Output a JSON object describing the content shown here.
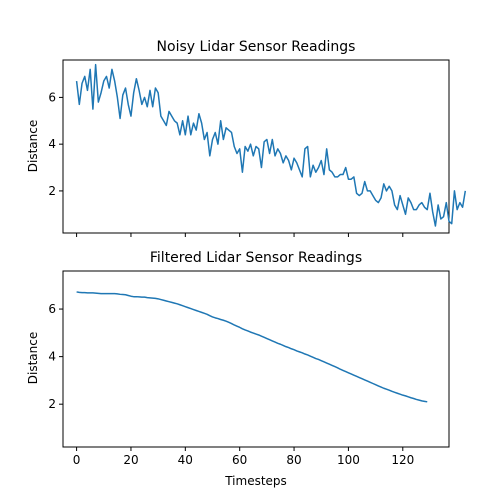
{
  "chart_data": [
    {
      "type": "line",
      "title": "Noisy Lidar Sensor Readings",
      "xlabel": "",
      "ylabel": "Distance",
      "xlim": [
        -5,
        137
      ],
      "ylim": [
        0.2,
        7.6
      ],
      "xticks": [
        0,
        20,
        40,
        60,
        80,
        100,
        120
      ],
      "yticks": [
        2,
        4,
        6
      ],
      "x_tick_labels_shown": false,
      "color": "#1f77b4",
      "grid": false,
      "series": [
        {
          "values": [
            6.7,
            5.7,
            6.6,
            6.9,
            6.3,
            7.2,
            5.5,
            7.4,
            5.8,
            6.2,
            6.7,
            6.9,
            6.4,
            7.2,
            6.7,
            6.0,
            5.1,
            6.1,
            6.4,
            5.7,
            5.2,
            6.2,
            6.8,
            6.3,
            5.7,
            6.0,
            5.6,
            6.3,
            5.6,
            6.4,
            6.2,
            5.2,
            5.0,
            4.8,
            5.4,
            5.2,
            5.0,
            4.9,
            4.4,
            5.0,
            4.4,
            5.2,
            4.4,
            4.9,
            4.6,
            5.3,
            4.9,
            4.2,
            4.5,
            3.5,
            4.2,
            4.5,
            4.0,
            5.0,
            4.2,
            4.7,
            4.6,
            4.5,
            3.9,
            3.6,
            3.8,
            2.8,
            3.9,
            3.7,
            4.0,
            3.5,
            3.9,
            3.8,
            3.0,
            4.1,
            4.2,
            3.6,
            4.2,
            3.5,
            3.8,
            3.6,
            3.2,
            3.5,
            3.3,
            2.9,
            3.4,
            3.2,
            2.9,
            2.6,
            3.8,
            3.9,
            2.6,
            3.1,
            2.8,
            3.0,
            3.3,
            2.7,
            3.8,
            2.9,
            2.8,
            2.6,
            2.6,
            2.7,
            2.7,
            3.0,
            2.5,
            2.5,
            2.6,
            1.9,
            1.8,
            1.9,
            2.4,
            2.0,
            2.0,
            1.8,
            1.6,
            1.5,
            1.7,
            2.3,
            2.0,
            2.2,
            2.0,
            1.4,
            1.2,
            1.8,
            1.4,
            1.0,
            1.7,
            1.5,
            1.2,
            1.2,
            1.4,
            1.5,
            1.3,
            1.2,
            1.9,
            1.1,
            0.5,
            1.4,
            0.8,
            0.9,
            1.5,
            0.7,
            0.6,
            2.0,
            1.2,
            1.5,
            1.3,
            2.0
          ]
        }
      ]
    },
    {
      "type": "line",
      "title": "Filtered Lidar Sensor Readings",
      "xlabel": "Timesteps",
      "ylabel": "Distance",
      "xlim": [
        -5,
        137
      ],
      "ylim": [
        0.2,
        7.6
      ],
      "xticks": [
        0,
        20,
        40,
        60,
        80,
        100,
        120
      ],
      "yticks": [
        2,
        4,
        6
      ],
      "x_tick_labels_shown": true,
      "color": "#1f77b4",
      "grid": false,
      "series": [
        {
          "values": [
            6.72,
            6.7,
            6.69,
            6.69,
            6.68,
            6.68,
            6.68,
            6.67,
            6.66,
            6.65,
            6.65,
            6.65,
            6.65,
            6.65,
            6.65,
            6.64,
            6.62,
            6.61,
            6.6,
            6.57,
            6.54,
            6.52,
            6.52,
            6.51,
            6.5,
            6.5,
            6.48,
            6.47,
            6.46,
            6.45,
            6.43,
            6.4,
            6.37,
            6.34,
            6.31,
            6.28,
            6.25,
            6.22,
            6.18,
            6.14,
            6.1,
            6.06,
            6.02,
            5.98,
            5.94,
            5.9,
            5.86,
            5.82,
            5.78,
            5.72,
            5.67,
            5.63,
            5.6,
            5.56,
            5.53,
            5.49,
            5.44,
            5.39,
            5.33,
            5.28,
            5.23,
            5.17,
            5.12,
            5.08,
            5.03,
            4.99,
            4.95,
            4.91,
            4.86,
            4.81,
            4.76,
            4.71,
            4.66,
            4.61,
            4.56,
            4.52,
            4.47,
            4.42,
            4.38,
            4.33,
            4.29,
            4.24,
            4.2,
            4.16,
            4.11,
            4.07,
            4.02,
            3.97,
            3.92,
            3.88,
            3.83,
            3.78,
            3.73,
            3.68,
            3.63,
            3.58,
            3.53,
            3.47,
            3.42,
            3.37,
            3.32,
            3.27,
            3.22,
            3.17,
            3.12,
            3.07,
            3.02,
            2.97,
            2.92,
            2.87,
            2.82,
            2.77,
            2.72,
            2.67,
            2.63,
            2.59,
            2.54,
            2.5,
            2.46,
            2.42,
            2.38,
            2.35,
            2.31,
            2.27,
            2.24,
            2.2,
            2.17,
            2.14,
            2.12,
            2.1
          ]
        }
      ]
    }
  ]
}
